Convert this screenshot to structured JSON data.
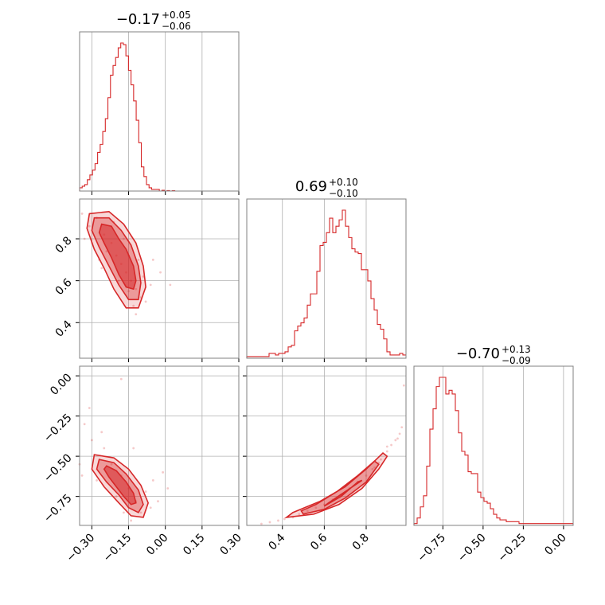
{
  "chart_data": {
    "type": "corner",
    "color": "#d62728",
    "parameters": [
      {
        "range": [
          -0.35,
          0.3
        ],
        "ticks": [
          -0.3,
          -0.15,
          0.0,
          0.15,
          0.3
        ],
        "tick_labels": [
          "−0.30",
          "−0.15",
          "0.00",
          "0.15",
          "0.30"
        ],
        "title_main": "−0.17",
        "title_plus": "+0.05",
        "title_minus": "−0.06",
        "median": -0.17,
        "err_plus": 0.05,
        "err_minus": 0.06,
        "histogram": {
          "bin_start": -0.35,
          "bin_width": 0.0105,
          "counts": [
            0.02,
            0.03,
            0.04,
            0.07,
            0.1,
            0.13,
            0.17,
            0.24,
            0.29,
            0.37,
            0.45,
            0.58,
            0.72,
            0.78,
            0.83,
            0.89,
            0.92,
            0.91,
            0.84,
            0.75,
            0.66,
            0.56,
            0.44,
            0.3,
            0.15,
            0.09,
            0.04,
            0.02,
            0.01,
            0.01,
            0.01,
            0.0,
            0.005,
            0.0,
            0.003,
            0.0,
            0.002,
            0.0,
            0.0,
            0.0,
            0.0,
            0.0,
            0.0,
            0.0,
            0.0,
            0.0,
            0.0,
            0.0,
            0.0,
            0.0,
            0.0,
            0.0,
            0.0,
            0.0,
            0.0,
            0.0,
            0.0,
            0.0,
            0.0,
            0.0,
            0.0,
            0.0
          ]
        }
      },
      {
        "range": [
          0.23,
          0.99
        ],
        "ticks": [
          0.4,
          0.6,
          0.8
        ],
        "tick_labels": [
          "0.4",
          "0.6",
          "0.8"
        ],
        "title_main": "0.69",
        "title_plus": "+0.10",
        "title_minus": "−0.10",
        "median": 0.69,
        "err_plus": 0.1,
        "err_minus": 0.1,
        "histogram": {
          "bin_start": 0.23,
          "bin_width": 0.0152,
          "counts": [
            0.01,
            0.01,
            0.01,
            0.01,
            0.01,
            0.01,
            0.01,
            0.03,
            0.03,
            0.02,
            0.03,
            0.03,
            0.04,
            0.07,
            0.08,
            0.17,
            0.2,
            0.22,
            0.25,
            0.33,
            0.4,
            0.4,
            0.54,
            0.7,
            0.72,
            0.78,
            0.87,
            0.78,
            0.82,
            0.86,
            0.92,
            0.82,
            0.75,
            0.68,
            0.66,
            0.65,
            0.55,
            0.55,
            0.48,
            0.37,
            0.3,
            0.21,
            0.18,
            0.12,
            0.04,
            0.02,
            0.02,
            0.02,
            0.03,
            0.02
          ]
        }
      },
      {
        "range": [
          -0.93,
          0.06
        ],
        "ticks": [
          -0.75,
          -0.5,
          -0.25,
          0.0
        ],
        "tick_labels": [
          "−0.75",
          "−0.50",
          "−0.25",
          "0.00"
        ],
        "title_main": "−0.70",
        "title_plus": "+0.13",
        "title_minus": "−0.09",
        "median": -0.7,
        "err_plus": 0.13,
        "err_minus": 0.09,
        "histogram": {
          "bin_start": -0.93,
          "bin_width": 0.0198,
          "counts": [
            0.01,
            0.04,
            0.1,
            0.16,
            0.32,
            0.52,
            0.63,
            0.75,
            0.8,
            0.8,
            0.71,
            0.73,
            0.71,
            0.62,
            0.5,
            0.4,
            0.38,
            0.29,
            0.28,
            0.28,
            0.18,
            0.15,
            0.13,
            0.12,
            0.09,
            0.06,
            0.04,
            0.03,
            0.03,
            0.02,
            0.02,
            0.02,
            0.02,
            0.01,
            0.01,
            0.01,
            0.01,
            0.01,
            0.01,
            0.01,
            0.01,
            0.01,
            0.01,
            0.01,
            0.01,
            0.01,
            0.01,
            0.01,
            0.01,
            0.01
          ]
        }
      }
    ],
    "pairs": [
      {
        "x_param": 0,
        "y_param": 1,
        "contours": [
          {
            "level": 0.39,
            "points": [
              [
                -0.26,
                0.87
              ],
              [
                -0.22,
                0.86
              ],
              [
                -0.19,
                0.8
              ],
              [
                -0.16,
                0.75
              ],
              [
                -0.13,
                0.67
              ],
              [
                -0.12,
                0.6
              ],
              [
                -0.13,
                0.56
              ],
              [
                -0.16,
                0.57
              ],
              [
                -0.19,
                0.63
              ],
              [
                -0.22,
                0.71
              ],
              [
                -0.25,
                0.78
              ],
              [
                -0.27,
                0.83
              ]
            ]
          },
          {
            "level": 0.86,
            "points": [
              [
                -0.29,
                0.9
              ],
              [
                -0.23,
                0.9
              ],
              [
                -0.18,
                0.84
              ],
              [
                -0.14,
                0.77
              ],
              [
                -0.11,
                0.67
              ],
              [
                -0.1,
                0.59
              ],
              [
                -0.11,
                0.51
              ],
              [
                -0.15,
                0.51
              ],
              [
                -0.19,
                0.58
              ],
              [
                -0.23,
                0.67
              ],
              [
                -0.27,
                0.76
              ],
              [
                -0.3,
                0.84
              ]
            ]
          },
          {
            "level": 0.99,
            "points": [
              [
                -0.31,
                0.92
              ],
              [
                -0.23,
                0.93
              ],
              [
                -0.17,
                0.87
              ],
              [
                -0.12,
                0.78
              ],
              [
                -0.09,
                0.67
              ],
              [
                -0.08,
                0.57
              ],
              [
                -0.11,
                0.47
              ],
              [
                -0.16,
                0.47
              ],
              [
                -0.21,
                0.56
              ],
              [
                -0.25,
                0.66
              ],
              [
                -0.29,
                0.75
              ],
              [
                -0.32,
                0.85
              ]
            ]
          }
        ],
        "samples": [
          [
            -0.28,
            0.9
          ],
          [
            -0.31,
            0.86
          ],
          [
            -0.25,
            0.82
          ],
          [
            -0.22,
            0.78
          ],
          [
            -0.2,
            0.72
          ],
          [
            -0.18,
            0.68
          ],
          [
            -0.16,
            0.64
          ],
          [
            -0.14,
            0.6
          ],
          [
            -0.12,
            0.56
          ],
          [
            -0.1,
            0.52
          ],
          [
            -0.33,
            0.8
          ],
          [
            -0.27,
            0.7
          ],
          [
            -0.24,
            0.74
          ],
          [
            -0.19,
            0.6
          ],
          [
            -0.15,
            0.55
          ],
          [
            -0.13,
            0.48
          ],
          [
            -0.09,
            0.62
          ],
          [
            -0.11,
            0.7
          ],
          [
            -0.06,
            0.58
          ],
          [
            -0.05,
            0.7
          ],
          [
            -0.02,
            0.64
          ],
          [
            -0.34,
            0.92
          ],
          [
            -0.21,
            0.88
          ],
          [
            -0.17,
            0.8
          ],
          [
            -0.15,
            0.72
          ],
          [
            -0.08,
            0.5
          ],
          [
            -0.12,
            0.44
          ],
          [
            0.02,
            0.58
          ],
          [
            -0.3,
            0.78
          ],
          [
            -0.26,
            0.66
          ]
        ]
      },
      {
        "x_param": 0,
        "y_param": 2,
        "contours": [
          {
            "level": 0.39,
            "points": [
              [
                -0.24,
                -0.56
              ],
              [
                -0.2,
                -0.59
              ],
              [
                -0.16,
                -0.66
              ],
              [
                -0.13,
                -0.73
              ],
              [
                -0.12,
                -0.79
              ],
              [
                -0.14,
                -0.8
              ],
              [
                -0.17,
                -0.75
              ],
              [
                -0.2,
                -0.69
              ],
              [
                -0.23,
                -0.63
              ],
              [
                -0.25,
                -0.58
              ]
            ]
          },
          {
            "level": 0.86,
            "points": [
              [
                -0.27,
                -0.52
              ],
              [
                -0.21,
                -0.54
              ],
              [
                -0.16,
                -0.61
              ],
              [
                -0.11,
                -0.71
              ],
              [
                -0.09,
                -0.8
              ],
              [
                -0.11,
                -0.85
              ],
              [
                -0.15,
                -0.82
              ],
              [
                -0.19,
                -0.74
              ],
              [
                -0.24,
                -0.66
              ],
              [
                -0.28,
                -0.58
              ]
            ]
          },
          {
            "level": 0.99,
            "points": [
              [
                -0.29,
                -0.49
              ],
              [
                -0.21,
                -0.51
              ],
              [
                -0.15,
                -0.58
              ],
              [
                -0.1,
                -0.68
              ],
              [
                -0.07,
                -0.79
              ],
              [
                -0.09,
                -0.88
              ],
              [
                -0.14,
                -0.87
              ],
              [
                -0.19,
                -0.79
              ],
              [
                -0.25,
                -0.69
              ],
              [
                -0.3,
                -0.58
              ]
            ]
          }
        ],
        "samples": [
          [
            -0.3,
            -0.4
          ],
          [
            -0.33,
            -0.3
          ],
          [
            -0.31,
            -0.2
          ],
          [
            -0.25,
            -0.45
          ],
          [
            -0.22,
            -0.55
          ],
          [
            -0.18,
            -0.62
          ],
          [
            -0.15,
            -0.7
          ],
          [
            -0.12,
            -0.78
          ],
          [
            -0.1,
            -0.85
          ],
          [
            -0.14,
            -0.9
          ],
          [
            -0.08,
            -0.72
          ],
          [
            -0.05,
            -0.65
          ],
          [
            -0.03,
            -0.78
          ],
          [
            -0.35,
            -0.55
          ],
          [
            -0.28,
            -0.65
          ],
          [
            -0.2,
            -0.75
          ],
          [
            -0.17,
            -0.85
          ],
          [
            -0.06,
            -0.82
          ],
          [
            -0.01,
            -0.6
          ],
          [
            -0.18,
            -0.02
          ],
          [
            -0.13,
            -0.45
          ],
          [
            -0.34,
            -0.62
          ],
          [
            0.01,
            -0.7
          ],
          [
            -0.26,
            -0.35
          ]
        ]
      },
      {
        "x_param": 1,
        "y_param": 2,
        "contours": [
          {
            "level": 0.39,
            "points": [
              [
                0.6,
                -0.81
              ],
              [
                0.68,
                -0.75
              ],
              [
                0.76,
                -0.66
              ],
              [
                0.78,
                -0.65
              ],
              [
                0.7,
                -0.72
              ],
              [
                0.62,
                -0.79
              ]
            ]
          },
          {
            "level": 0.86,
            "points": [
              [
                0.5,
                -0.86
              ],
              [
                0.6,
                -0.83
              ],
              [
                0.7,
                -0.76
              ],
              [
                0.8,
                -0.66
              ],
              [
                0.86,
                -0.55
              ],
              [
                0.84,
                -0.53
              ],
              [
                0.76,
                -0.62
              ],
              [
                0.66,
                -0.72
              ],
              [
                0.56,
                -0.8
              ],
              [
                0.49,
                -0.84
              ]
            ]
          },
          {
            "level": 0.99,
            "points": [
              [
                0.42,
                -0.88
              ],
              [
                0.55,
                -0.86
              ],
              [
                0.67,
                -0.8
              ],
              [
                0.78,
                -0.7
              ],
              [
                0.86,
                -0.58
              ],
              [
                0.9,
                -0.5
              ],
              [
                0.88,
                -0.48
              ],
              [
                0.8,
                -0.58
              ],
              [
                0.7,
                -0.69
              ],
              [
                0.58,
                -0.78
              ],
              [
                0.45,
                -0.85
              ]
            ]
          }
        ],
        "samples": [
          [
            0.3,
            -0.92
          ],
          [
            0.34,
            -0.91
          ],
          [
            0.38,
            -0.9
          ],
          [
            0.41,
            -0.89
          ],
          [
            0.45,
            -0.88
          ],
          [
            0.48,
            -0.86
          ],
          [
            0.52,
            -0.84
          ],
          [
            0.56,
            -0.82
          ],
          [
            0.6,
            -0.8
          ],
          [
            0.64,
            -0.77
          ],
          [
            0.68,
            -0.74
          ],
          [
            0.72,
            -0.7
          ],
          [
            0.76,
            -0.66
          ],
          [
            0.8,
            -0.62
          ],
          [
            0.84,
            -0.57
          ],
          [
            0.87,
            -0.52
          ],
          [
            0.9,
            -0.47
          ],
          [
            0.92,
            -0.43
          ],
          [
            0.94,
            -0.4
          ],
          [
            0.96,
            -0.36
          ],
          [
            0.97,
            -0.32
          ],
          [
            0.98,
            -0.06
          ],
          [
            0.9,
            -0.44
          ],
          [
            0.86,
            -0.54
          ],
          [
            0.83,
            -0.58
          ],
          [
            0.95,
            -0.39
          ]
        ]
      }
    ]
  }
}
